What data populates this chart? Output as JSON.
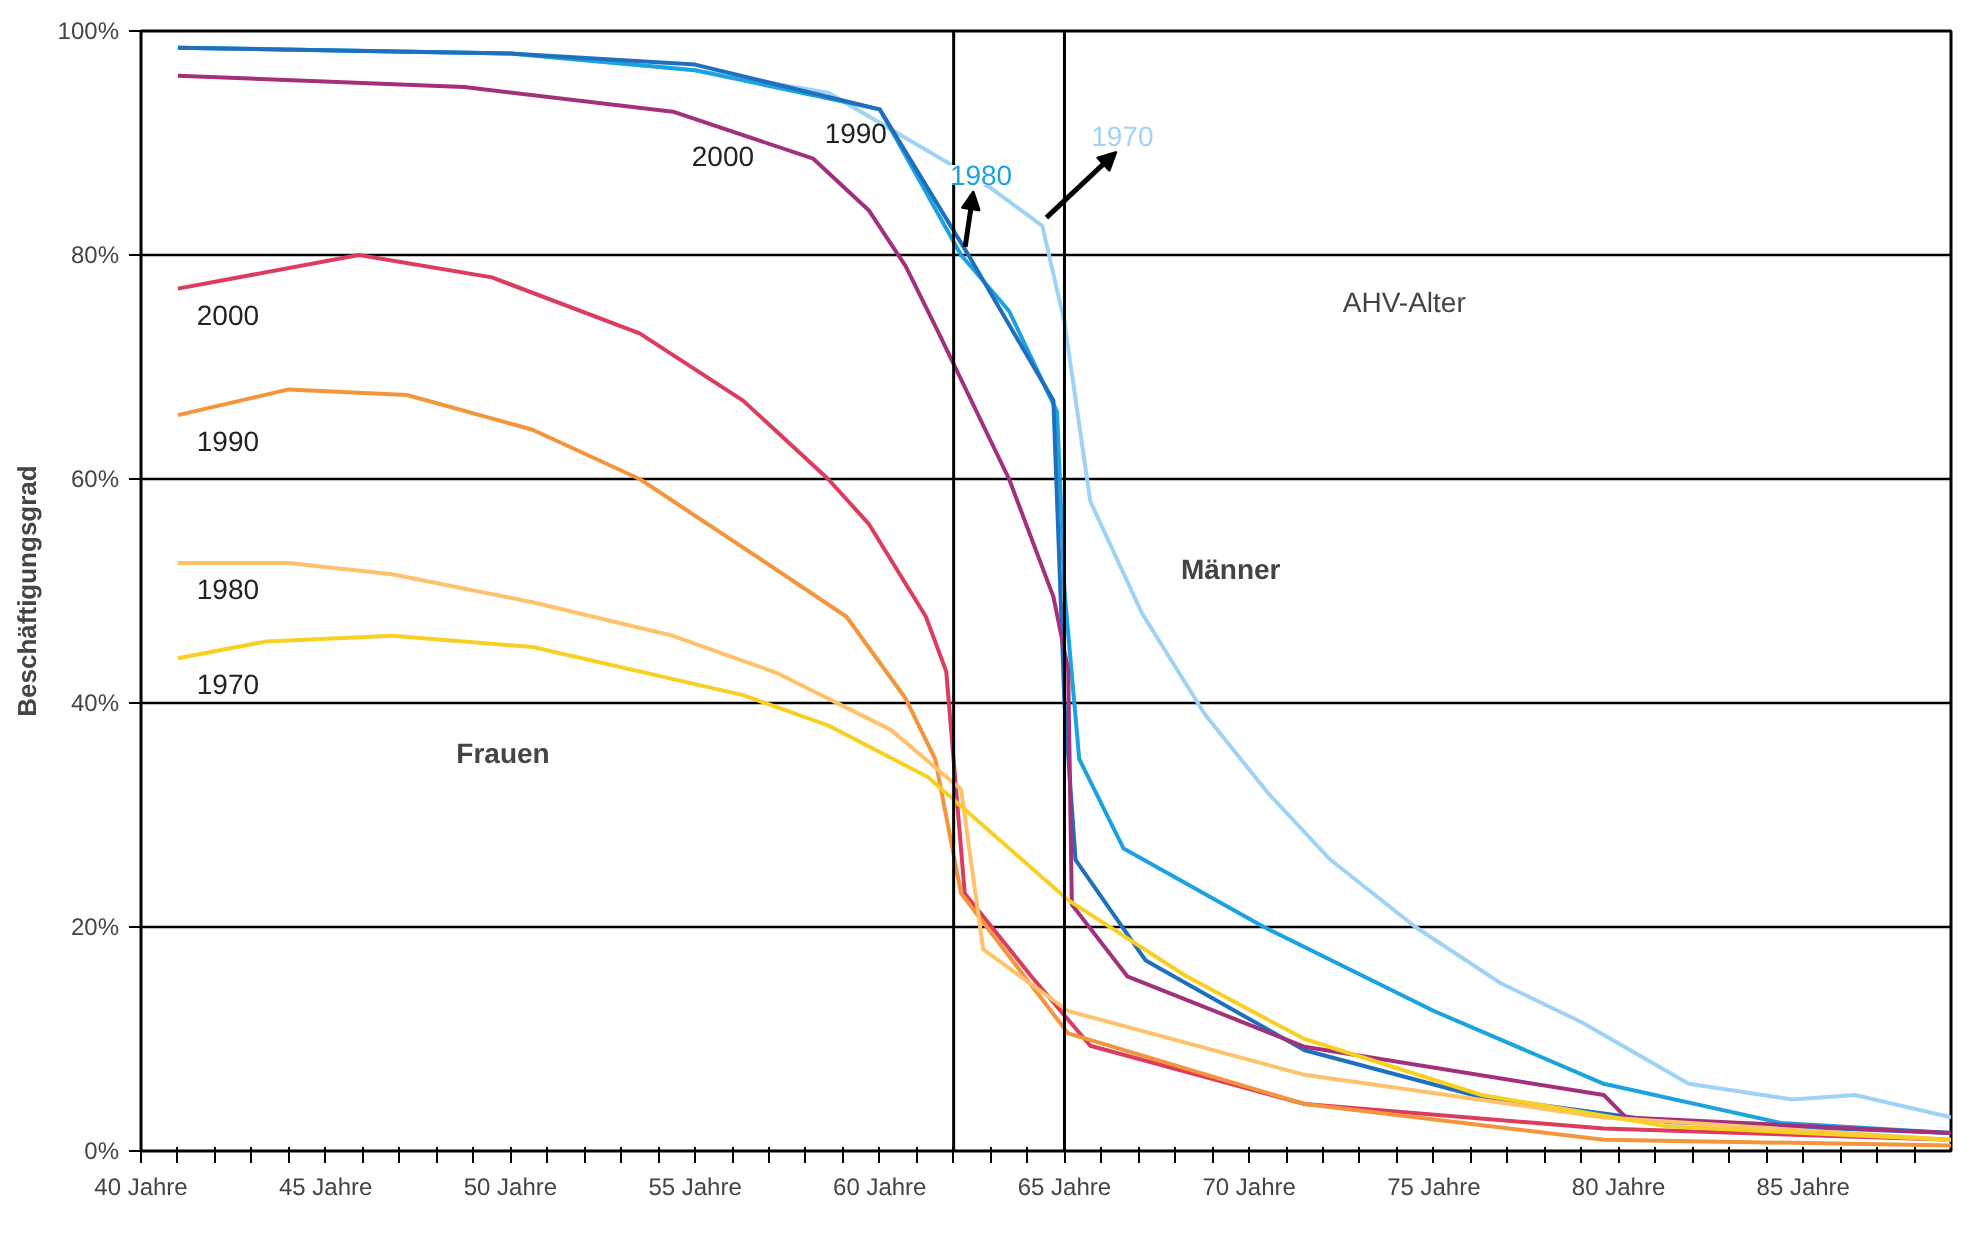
{
  "chart_data": {
    "type": "line",
    "ylabel": "Beschäftigungsgrad",
    "xlim": [
      40,
      89
    ],
    "ylim": [
      0,
      100
    ],
    "xticks": [
      {
        "value": 40,
        "label": "40 Jahre"
      },
      {
        "value": 41,
        "label": null
      },
      {
        "value": 42,
        "label": null
      },
      {
        "value": 43,
        "label": null
      },
      {
        "value": 44,
        "label": null
      },
      {
        "value": 45,
        "label": "45 Jahre"
      },
      {
        "value": 46,
        "label": null
      },
      {
        "value": 47,
        "label": null
      },
      {
        "value": 48,
        "label": null
      },
      {
        "value": 49,
        "label": null
      },
      {
        "value": 50,
        "label": "50 Jahre"
      },
      {
        "value": 51,
        "label": null
      },
      {
        "value": 52,
        "label": null
      },
      {
        "value": 53,
        "label": null
      },
      {
        "value": 54,
        "label": null
      },
      {
        "value": 55,
        "label": "55 Jahre"
      },
      {
        "value": 56,
        "label": null
      },
      {
        "value": 57,
        "label": null
      },
      {
        "value": 58,
        "label": null
      },
      {
        "value": 59,
        "label": null
      },
      {
        "value": 60,
        "label": "60 Jahre"
      },
      {
        "value": 61,
        "label": null
      },
      {
        "value": 62,
        "label": null
      },
      {
        "value": 63,
        "label": null
      },
      {
        "value": 64,
        "label": null
      },
      {
        "value": 65,
        "label": "65 Jahre"
      },
      {
        "value": 66,
        "label": null
      },
      {
        "value": 67,
        "label": null
      },
      {
        "value": 68,
        "label": null
      },
      {
        "value": 69,
        "label": null
      },
      {
        "value": 70,
        "label": "70 Jahre"
      },
      {
        "value": 71,
        "label": null
      },
      {
        "value": 72,
        "label": null
      },
      {
        "value": 73,
        "label": null
      },
      {
        "value": 74,
        "label": null
      },
      {
        "value": 75,
        "label": "75 Jahre"
      },
      {
        "value": 76,
        "label": null
      },
      {
        "value": 77,
        "label": null
      },
      {
        "value": 78,
        "label": null
      },
      {
        "value": 79,
        "label": null
      },
      {
        "value": 80,
        "label": "80 Jahre"
      },
      {
        "value": 81,
        "label": null
      },
      {
        "value": 82,
        "label": null
      },
      {
        "value": 83,
        "label": null
      },
      {
        "value": 84,
        "label": null
      },
      {
        "value": 85,
        "label": "85 Jahre"
      },
      {
        "value": 86,
        "label": null
      },
      {
        "value": 87,
        "label": null
      },
      {
        "value": 88,
        "label": null
      }
    ],
    "yticks": [
      {
        "value": 0,
        "label": "0%"
      },
      {
        "value": 20,
        "label": "20%"
      },
      {
        "value": 40,
        "label": "40%"
      },
      {
        "value": 60,
        "label": "60%"
      },
      {
        "value": 80,
        "label": "80%"
      },
      {
        "value": 100,
        "label": "100%"
      }
    ],
    "grid": "y",
    "marker": "none",
    "line_style": "solid",
    "series": [
      {
        "name": "1970",
        "color": "#9fd3f5",
        "x": [
          41,
          50,
          55,
          58.6,
          63,
          64.4,
          65,
          65.7,
          67.1,
          68.8,
          70.5,
          72.2,
          74.5,
          76.8,
          79,
          81.9,
          84.7,
          86.4,
          89
        ],
        "values": [
          98.5,
          98,
          96.5,
          94.5,
          86,
          82.6,
          74,
          58,
          48,
          39,
          32,
          26,
          20,
          15,
          11.5,
          6,
          4.6,
          5,
          3
        ]
      },
      {
        "name": "1980",
        "color": "#1aa3e0",
        "x": [
          41,
          50,
          55,
          60,
          62.2,
          63.5,
          64.8,
          65,
          65.4,
          66.6,
          70.4,
          75,
          79.6,
          84.4,
          89
        ],
        "values": [
          98.5,
          98,
          96.5,
          93,
          80,
          75,
          66,
          50,
          35,
          27,
          20,
          12.5,
          6,
          2.5,
          1.6
        ]
      },
      {
        "name": "1990",
        "color": "#1f6fbf",
        "x": [
          41,
          50,
          55,
          60,
          62.4,
          64.7,
          65,
          65.3,
          67.2,
          71.5,
          76.3,
          81.3,
          89
        ],
        "values": [
          98.5,
          98,
          97,
          93,
          80,
          67,
          40,
          26,
          17,
          9,
          4.8,
          2.6,
          1.6
        ]
      },
      {
        "name": "2000",
        "color": "#a2307c",
        "x": [
          41,
          48.75,
          54.4,
          58.2,
          59.7,
          60.7,
          61.6,
          63.5,
          64.7,
          65.1,
          65.2,
          66.7,
          71.5,
          79.6,
          80.2,
          89
        ],
        "values": [
          96,
          95,
          92.8,
          88.6,
          84,
          79,
          73,
          60,
          49.5,
          43,
          22,
          15.6,
          9.3,
          5,
          3,
          1.6
        ]
      },
      {
        "name": "2000",
        "color": "#dc3c5e",
        "x": [
          41,
          45.9,
          49.5,
          53.5,
          56.3,
          58.6,
          59.7,
          61.25,
          61.8,
          62.3,
          64.1,
          65.7,
          71.5,
          79.6,
          89
        ],
        "values": [
          77,
          80,
          78,
          73,
          67,
          60,
          56,
          47.7,
          42.8,
          23,
          15.6,
          9.4,
          4.2,
          2,
          1
        ]
      },
      {
        "name": "1990",
        "color": "#f4953c",
        "x": [
          41,
          44,
          47.2,
          50.6,
          53.5,
          56.7,
          59.1,
          60.7,
          61.5,
          62.2,
          65.1,
          71.5,
          79.6,
          89
        ],
        "values": [
          65.7,
          68,
          67.5,
          64.4,
          60,
          53,
          47.7,
          40.4,
          35,
          23,
          10.5,
          4.2,
          1,
          0.5
        ]
      },
      {
        "name": "1980",
        "color": "#ffc26a",
        "x": [
          41,
          44,
          46.8,
          50.6,
          54.4,
          57.2,
          60.3,
          62.2,
          62.8,
          65.1,
          71.5,
          79.6,
          89
        ],
        "values": [
          52.5,
          52.5,
          51.5,
          49,
          46,
          42.7,
          37.6,
          32.3,
          18,
          12.5,
          6.8,
          3,
          1
        ]
      },
      {
        "name": "1970",
        "color": "#f8d024",
        "x": [
          41,
          43.4,
          46.8,
          50.6,
          56.3,
          58.6,
          61.3,
          65.1,
          68.3,
          71.5,
          76.3,
          81.3,
          89
        ],
        "values": [
          44,
          45.5,
          46,
          45,
          40.7,
          38,
          33.4,
          22.4,
          15.6,
          10,
          5,
          2.2,
          1
        ]
      }
    ],
    "ref_lines": [
      {
        "axis": "x",
        "value": 62,
        "color": "#000000"
      },
      {
        "axis": "x",
        "value": 65,
        "color": "#000000"
      }
    ],
    "annotations": [
      "AHV-Alter",
      "Männer",
      "Frauen"
    ]
  }
}
